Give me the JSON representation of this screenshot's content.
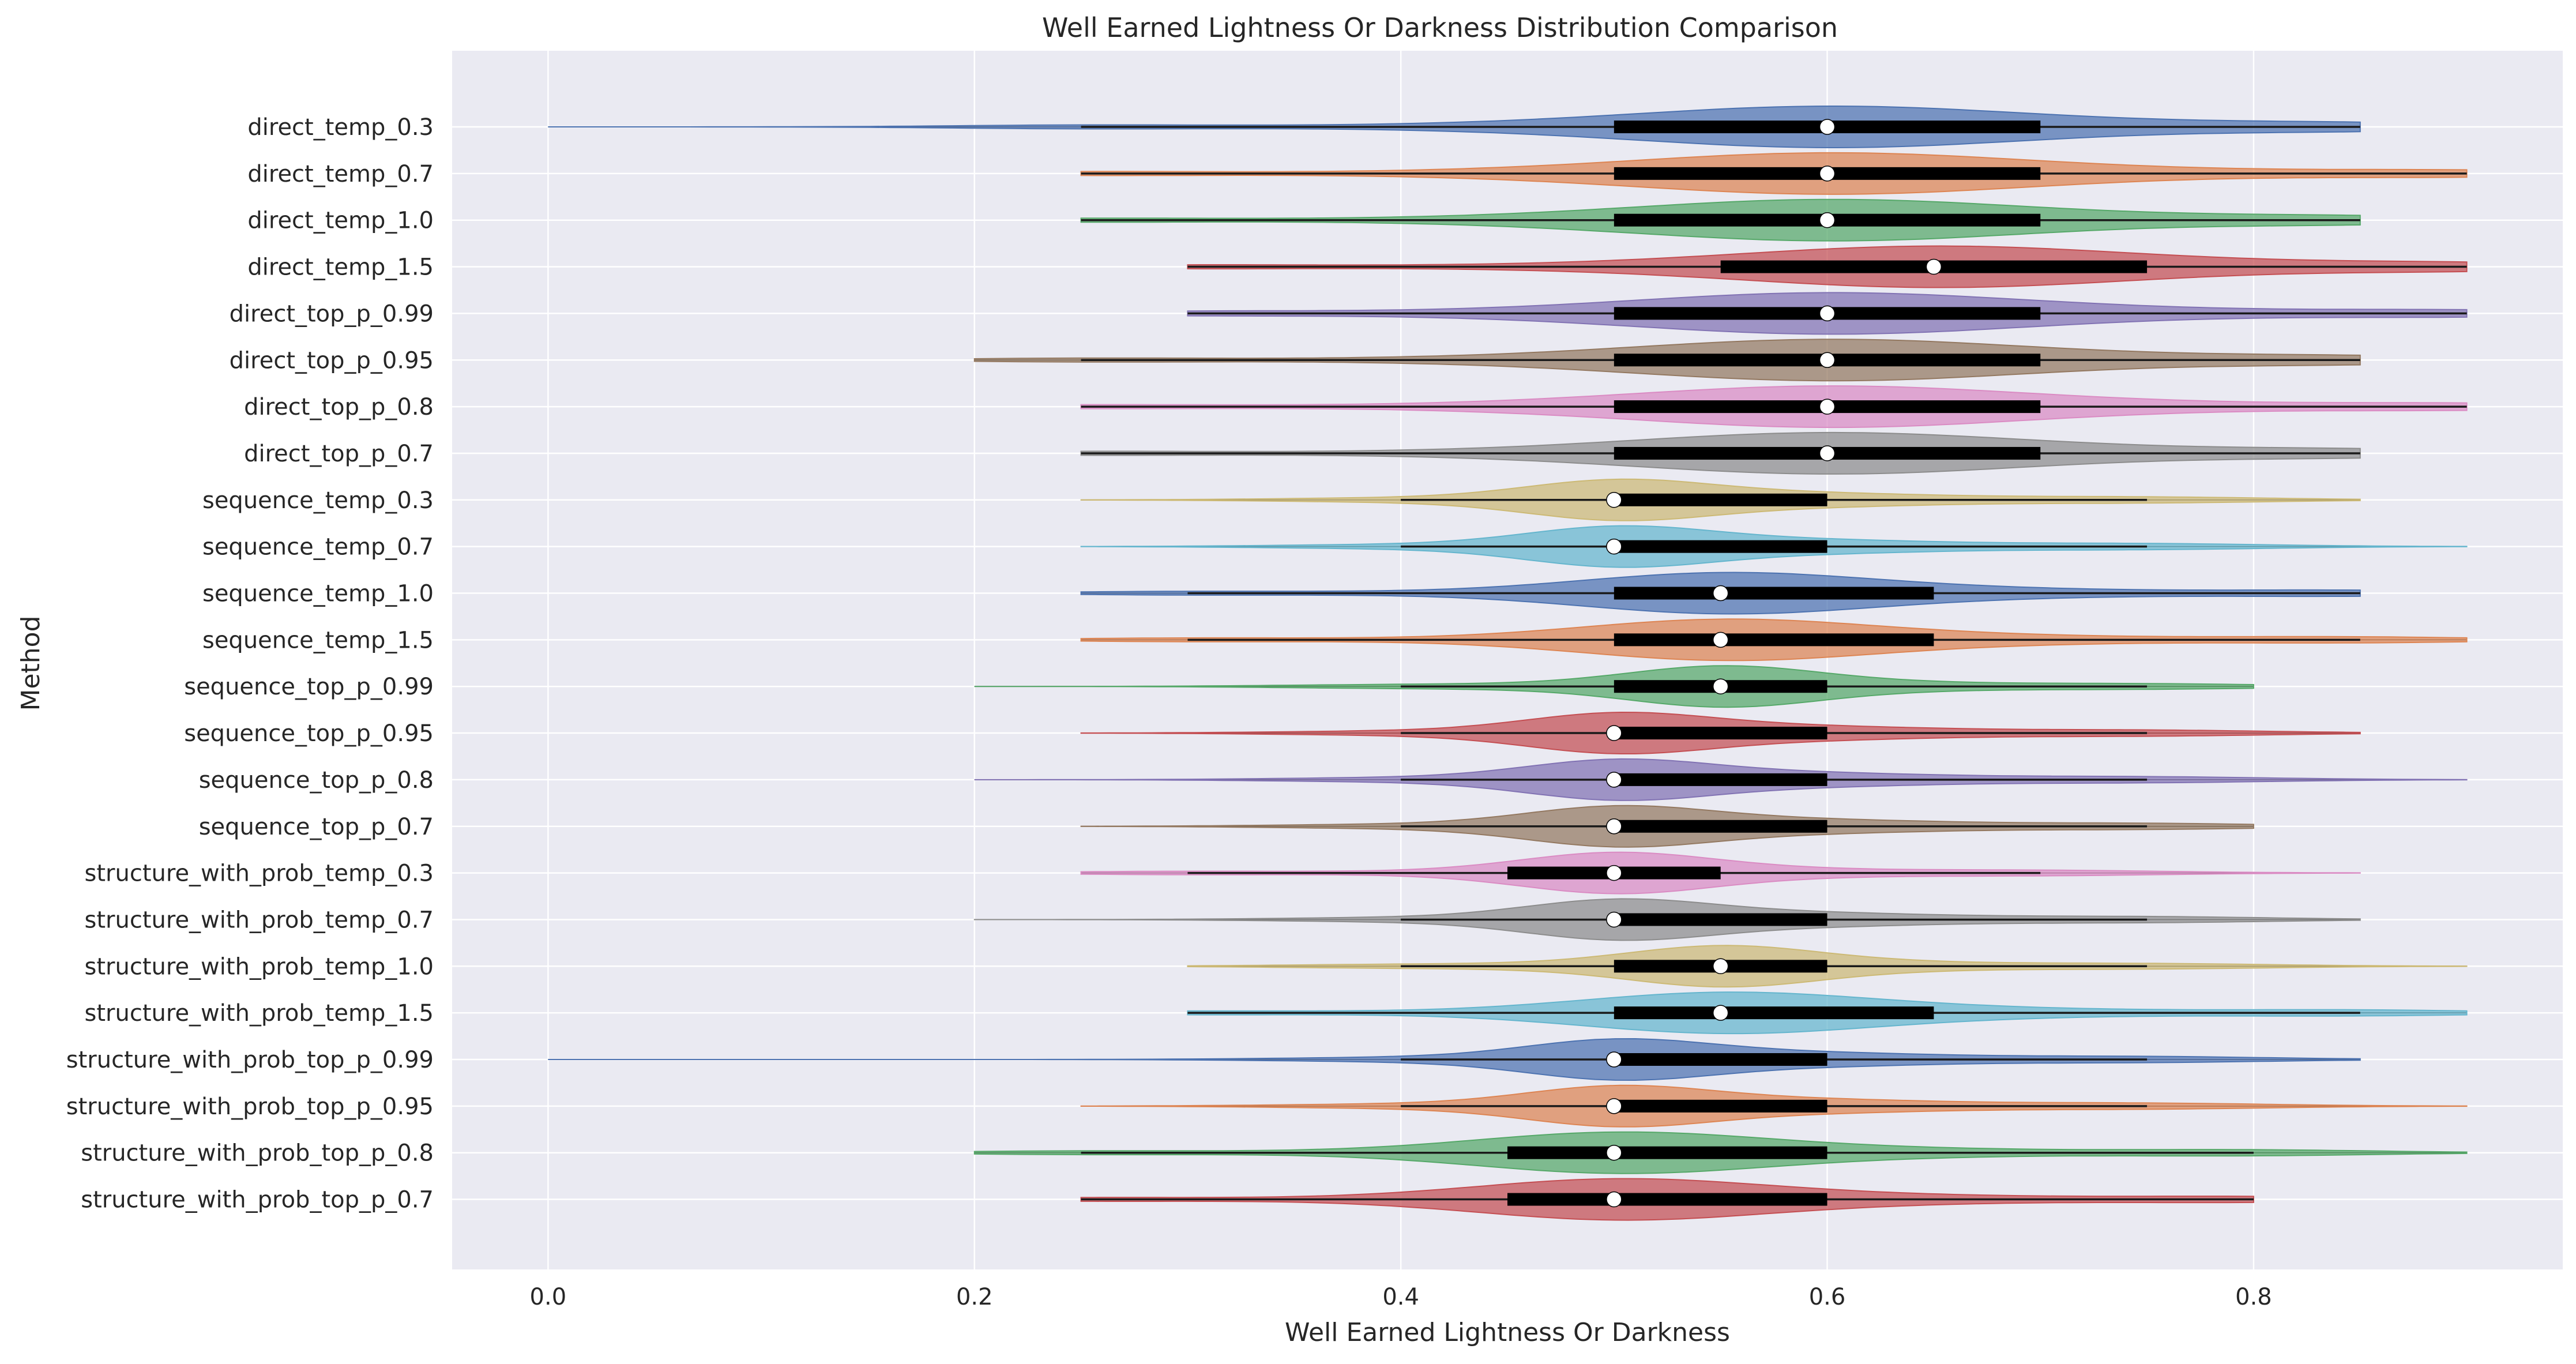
{
  "chart_data": {
    "type": "violin",
    "orientation": "horizontal",
    "title": "Well Earned Lightness Or Darkness Distribution Comparison",
    "xlabel": "Well Earned Lightness Or Darkness",
    "ylabel": "Method",
    "xlim": [
      -0.045,
      0.945
    ],
    "xticks": [
      0.0,
      0.2,
      0.4,
      0.6,
      0.8
    ],
    "xtick_labels": [
      "0.0",
      "0.2",
      "0.4",
      "0.6",
      "0.8"
    ],
    "grid": true,
    "palette": [
      "#4c72b0",
      "#dd8452",
      "#55a868",
      "#c44e52",
      "#8172b3",
      "#937860",
      "#da8bc3",
      "#8c8c8c",
      "#ccb974",
      "#64b5cd"
    ],
    "series": [
      {
        "name": "direct_temp_0.3",
        "min": 0.0,
        "q1": 0.5,
        "median": 0.6,
        "q3": 0.7,
        "max": 0.85,
        "whisker_lo": 0.25,
        "whisker_hi": 0.85
      },
      {
        "name": "direct_temp_0.7",
        "min": 0.25,
        "q1": 0.5,
        "median": 0.6,
        "q3": 0.7,
        "max": 0.9,
        "whisker_lo": 0.25,
        "whisker_hi": 0.9
      },
      {
        "name": "direct_temp_1.0",
        "min": 0.25,
        "q1": 0.5,
        "median": 0.6,
        "q3": 0.7,
        "max": 0.85,
        "whisker_lo": 0.25,
        "whisker_hi": 0.85
      },
      {
        "name": "direct_temp_1.5",
        "min": 0.3,
        "q1": 0.55,
        "median": 0.65,
        "q3": 0.75,
        "max": 0.9,
        "whisker_lo": 0.3,
        "whisker_hi": 0.9
      },
      {
        "name": "direct_top_p_0.99",
        "min": 0.3,
        "q1": 0.5,
        "median": 0.6,
        "q3": 0.7,
        "max": 0.9,
        "whisker_lo": 0.3,
        "whisker_hi": 0.9
      },
      {
        "name": "direct_top_p_0.95",
        "min": 0.2,
        "q1": 0.5,
        "median": 0.6,
        "q3": 0.7,
        "max": 0.85,
        "whisker_lo": 0.25,
        "whisker_hi": 0.85
      },
      {
        "name": "direct_top_p_0.8",
        "min": 0.25,
        "q1": 0.5,
        "median": 0.6,
        "q3": 0.7,
        "max": 0.9,
        "whisker_lo": 0.25,
        "whisker_hi": 0.9
      },
      {
        "name": "direct_top_p_0.7",
        "min": 0.25,
        "q1": 0.5,
        "median": 0.6,
        "q3": 0.7,
        "max": 0.85,
        "whisker_lo": 0.25,
        "whisker_hi": 0.85
      },
      {
        "name": "sequence_temp_0.3",
        "min": 0.25,
        "q1": 0.5,
        "median": 0.5,
        "q3": 0.6,
        "max": 0.85,
        "whisker_lo": 0.4,
        "whisker_hi": 0.75
      },
      {
        "name": "sequence_temp_0.7",
        "min": 0.25,
        "q1": 0.5,
        "median": 0.5,
        "q3": 0.6,
        "max": 0.9,
        "whisker_lo": 0.4,
        "whisker_hi": 0.75
      },
      {
        "name": "sequence_temp_1.0",
        "min": 0.25,
        "q1": 0.5,
        "median": 0.55,
        "q3": 0.65,
        "max": 0.85,
        "whisker_lo": 0.3,
        "whisker_hi": 0.85
      },
      {
        "name": "sequence_temp_1.5",
        "min": 0.25,
        "q1": 0.5,
        "median": 0.55,
        "q3": 0.65,
        "max": 0.9,
        "whisker_lo": 0.3,
        "whisker_hi": 0.85
      },
      {
        "name": "sequence_top_p_0.99",
        "min": 0.2,
        "q1": 0.5,
        "median": 0.55,
        "q3": 0.6,
        "max": 0.8,
        "whisker_lo": 0.4,
        "whisker_hi": 0.75
      },
      {
        "name": "sequence_top_p_0.95",
        "min": 0.25,
        "q1": 0.5,
        "median": 0.5,
        "q3": 0.6,
        "max": 0.85,
        "whisker_lo": 0.4,
        "whisker_hi": 0.75
      },
      {
        "name": "sequence_top_p_0.8",
        "min": 0.2,
        "q1": 0.5,
        "median": 0.5,
        "q3": 0.6,
        "max": 0.9,
        "whisker_lo": 0.4,
        "whisker_hi": 0.75
      },
      {
        "name": "sequence_top_p_0.7",
        "min": 0.25,
        "q1": 0.5,
        "median": 0.5,
        "q3": 0.6,
        "max": 0.8,
        "whisker_lo": 0.4,
        "whisker_hi": 0.75
      },
      {
        "name": "structure_with_prob_temp_0.3",
        "min": 0.25,
        "q1": 0.45,
        "median": 0.5,
        "q3": 0.55,
        "max": 0.85,
        "whisker_lo": 0.3,
        "whisker_hi": 0.7
      },
      {
        "name": "structure_with_prob_temp_0.7",
        "min": 0.2,
        "q1": 0.5,
        "median": 0.5,
        "q3": 0.6,
        "max": 0.85,
        "whisker_lo": 0.4,
        "whisker_hi": 0.75
      },
      {
        "name": "structure_with_prob_temp_1.0",
        "min": 0.3,
        "q1": 0.5,
        "median": 0.55,
        "q3": 0.6,
        "max": 0.9,
        "whisker_lo": 0.4,
        "whisker_hi": 0.75
      },
      {
        "name": "structure_with_prob_temp_1.5",
        "min": 0.3,
        "q1": 0.5,
        "median": 0.55,
        "q3": 0.65,
        "max": 0.9,
        "whisker_lo": 0.3,
        "whisker_hi": 0.85
      },
      {
        "name": "structure_with_prob_top_p_0.99",
        "min": 0.0,
        "q1": 0.5,
        "median": 0.5,
        "q3": 0.6,
        "max": 0.85,
        "whisker_lo": 0.4,
        "whisker_hi": 0.75
      },
      {
        "name": "structure_with_prob_top_p_0.95",
        "min": 0.25,
        "q1": 0.5,
        "median": 0.5,
        "q3": 0.6,
        "max": 0.9,
        "whisker_lo": 0.4,
        "whisker_hi": 0.75
      },
      {
        "name": "structure_with_prob_top_p_0.8",
        "min": 0.2,
        "q1": 0.45,
        "median": 0.5,
        "q3": 0.6,
        "max": 0.9,
        "whisker_lo": 0.25,
        "whisker_hi": 0.8
      },
      {
        "name": "structure_with_prob_top_p_0.7",
        "min": 0.25,
        "q1": 0.45,
        "median": 0.5,
        "q3": 0.6,
        "max": 0.8,
        "whisker_lo": 0.25,
        "whisker_hi": 0.8
      }
    ]
  }
}
